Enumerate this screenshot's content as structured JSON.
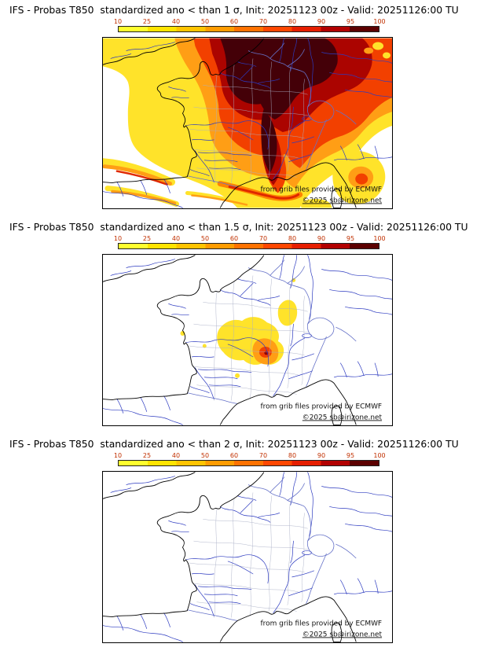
{
  "panels": [
    {
      "title": "IFS - Probas T850  standardized ano < than 1 σ, Init: 20251123 00z - Valid: 20251126:00 TU",
      "threshold_sigma": "1",
      "credit": "from grib files provided by ECMWF",
      "copyright": "©2025 sb@irizone.net"
    },
    {
      "title": "IFS - Probas T850  standardized ano < than 1.5 σ, Init: 20251123 00z - Valid: 20251126:00 TU",
      "threshold_sigma": "1.5",
      "credit": "from grib files provided by ECMWF",
      "copyright": "©2025 sb@irizone.net"
    },
    {
      "title": "IFS - Probas T850  standardized ano < than 2 σ, Init: 20251123 00z - Valid: 20251126:00 TU",
      "threshold_sigma": "2",
      "credit": "from grib files provided by ECMWF",
      "copyright": "©2025 sb@irizone.net"
    }
  ],
  "colorbar": {
    "ticks": [
      "10",
      "25",
      "40",
      "50",
      "60",
      "70",
      "80",
      "90",
      "95",
      "100"
    ],
    "colors": [
      "#ffff2e",
      "#ffe400",
      "#ffc400",
      "#ff9c00",
      "#ff7200",
      "#ff4700",
      "#e61e00",
      "#b20000",
      "#5c0000"
    ],
    "tick_color": "#c03000",
    "unit": "%"
  },
  "chart_data": {
    "type": "heatmap",
    "title": "IFS probability maps of T850 standardized anomaly below threshold, over France",
    "scale_percent": [
      10,
      25,
      40,
      50,
      60,
      70,
      80,
      90,
      95,
      100
    ],
    "legend_position": "top",
    "panels": [
      {
        "threshold_sigma": 1,
        "summary": "Probabilities 90-100% (dark maroon) over most of northern and central France, Benelux and western Germany, with a high-probability tongue down the Rhone valley to the Mediterranean; 60-90% ring around it; 10-50% fringes over western Atlantic France, England and northern Italy; banded 10-60% streaks over northern Spain, the Pyrenees and the Gulf of Lion; white (<10%) over the Atlantic and southwest corner"
      },
      {
        "threshold_sigma": 1.5,
        "summary": "Mostly below 10% (white); isolated 10-60% cluster over south-central France (Massif Central / Cevennes) containing a small 80-100% core spot; a small 10-25% patch to the northeast and a few tiny scattered 10% dots"
      },
      {
        "threshold_sigma": 2,
        "summary": "No probabilities above 10% anywhere (entirely white map)"
      }
    ]
  }
}
